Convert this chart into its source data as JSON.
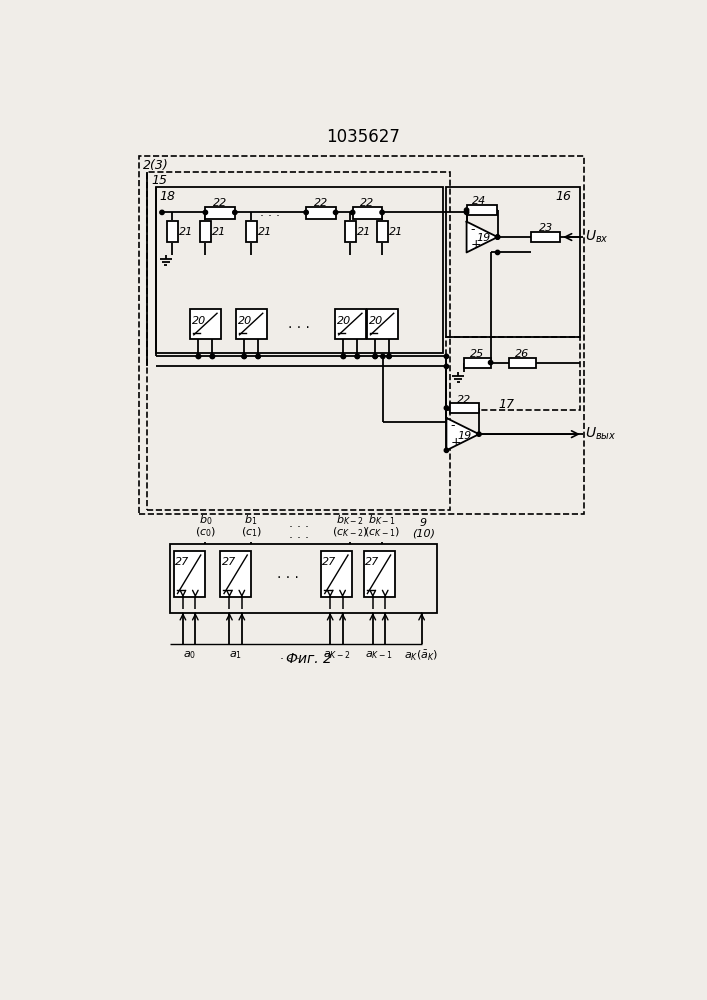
{
  "title": "1035627",
  "fig_caption": "Фиг. 2",
  "bg": "#f0ede8",
  "figsize": [
    7.07,
    10.0
  ],
  "dpi": 100
}
